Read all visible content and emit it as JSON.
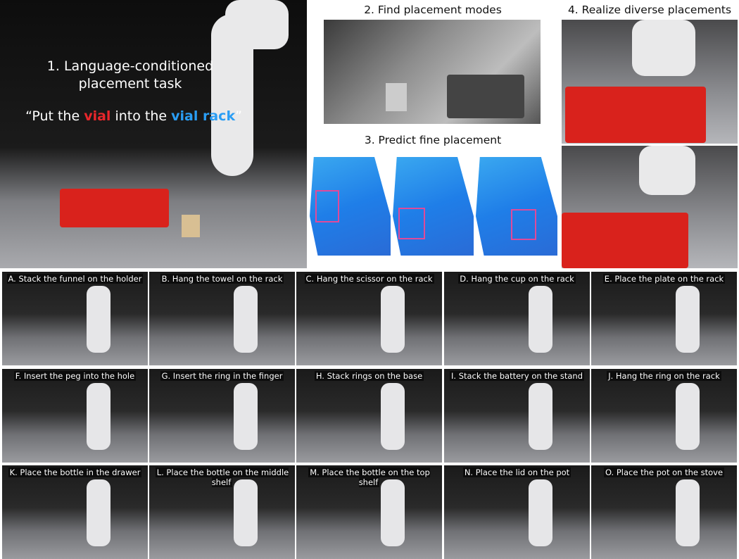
{
  "panel1": {
    "title_line1": "1. Language-conditioned",
    "title_line2": "placement task",
    "quote_open": "“Put the ",
    "quote_object": "vial",
    "quote_mid": " into the ",
    "quote_target": "vial rack",
    "quote_close": "”",
    "object_color": "#e8262b",
    "target_color": "#2a9df4"
  },
  "panel2": {
    "heading": "2. Find placement modes"
  },
  "panel3": {
    "heading": "3. Predict fine placement"
  },
  "panel4": {
    "heading": "4. Realize diverse placements"
  },
  "highlight_color": "#e04a9a",
  "tasks": [
    {
      "label": "A. Stack the funnel on the holder"
    },
    {
      "label": "B. Hang the towel on the rack"
    },
    {
      "label": "C. Hang the scissor on the rack"
    },
    {
      "label": "D. Hang the cup on the rack"
    },
    {
      "label": "E. Place the plate on the rack"
    },
    {
      "label": "F. Insert the peg into the hole"
    },
    {
      "label": "G. Insert the ring in the finger"
    },
    {
      "label": "H. Stack rings on the base"
    },
    {
      "label": "I. Stack the battery on the stand"
    },
    {
      "label": "J. Hang the ring on the rack"
    },
    {
      "label": "K. Place the bottle in the drawer"
    },
    {
      "label": "L. Place the bottle on the middle shelf"
    },
    {
      "label": "M. Place the bottle on the top shelf"
    },
    {
      "label": "N. Place the lid on the pot"
    },
    {
      "label": "O. Place the pot on the stove"
    }
  ]
}
